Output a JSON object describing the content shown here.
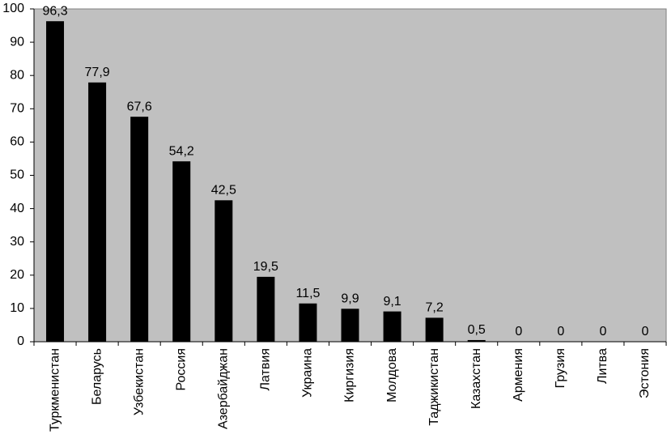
{
  "chart_data": {
    "type": "bar",
    "categories": [
      "Туркменистан",
      "Беларусь",
      "Узбекистан",
      "Россия",
      "Азербайджан",
      "Латвия",
      "Украина",
      "Киргизия",
      "Молдова",
      "Таджикистан",
      "Казахстан",
      "Армения",
      "Грузия",
      "Литва",
      "Эстония"
    ],
    "values": [
      96.3,
      77.9,
      67.6,
      54.2,
      42.5,
      19.5,
      11.5,
      9.9,
      9.1,
      7.2,
      0.5,
      0,
      0,
      0,
      0
    ],
    "value_labels": [
      "96,3",
      "77,9",
      "67,6",
      "54,2",
      "42,5",
      "19,5",
      "11,5",
      "9,9",
      "9,1",
      "7,2",
      "0,5",
      "0",
      "0",
      "0",
      "0"
    ],
    "color": "#000000",
    "ylim": [
      0,
      100
    ],
    "yticks": [
      0,
      10,
      20,
      30,
      40,
      50,
      60,
      70,
      80,
      90,
      100
    ],
    "grid": false
  }
}
